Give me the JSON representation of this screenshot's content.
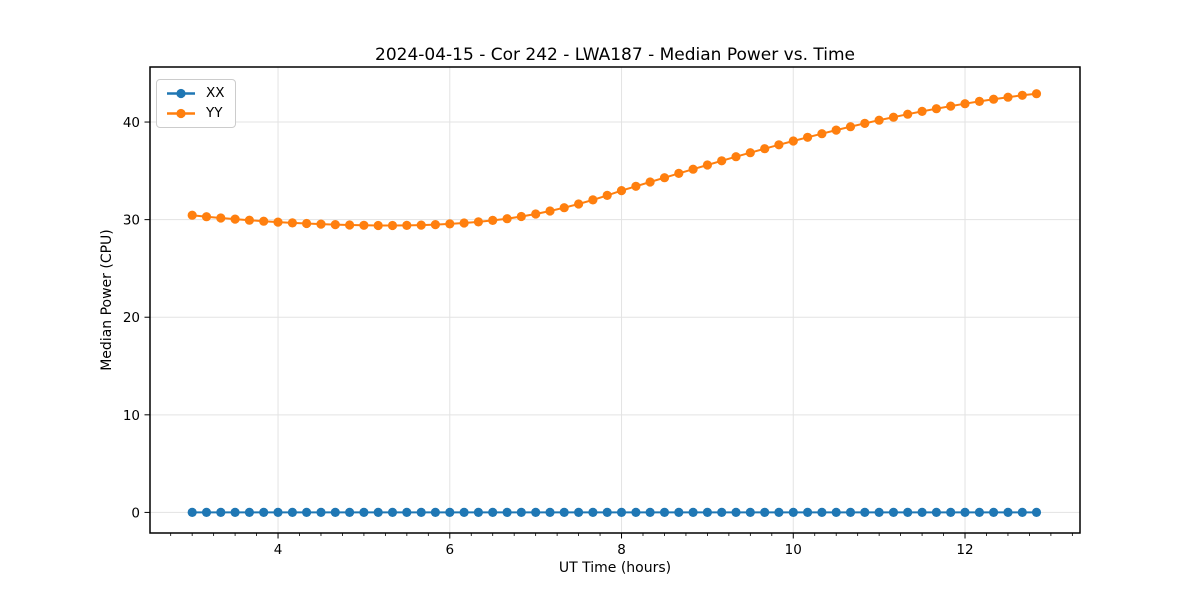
{
  "legend": {
    "position": "upper left",
    "items": [
      {
        "label": "XX",
        "color": "#1f77b4"
      },
      {
        "label": "YY",
        "color": "#ff7f0e"
      }
    ]
  },
  "chart_data": {
    "type": "line",
    "title": "2024-04-15 - Cor 242 - LWA187 - Median Power vs. Time",
    "xlabel": "UT Time (hours)",
    "ylabel": "Median Power (CPU)",
    "x_ticks": [
      4,
      6,
      8,
      10,
      12
    ],
    "y_ticks": [
      0,
      10,
      20,
      30,
      40
    ],
    "x_minor_step": 0.25,
    "xlim": [
      2.509,
      13.339
    ],
    "ylim": [
      -2.11,
      45.64
    ],
    "grid": true,
    "grid_color": "#e3e3e3",
    "legend_position": "upper left",
    "x": [
      3.0,
      3.167,
      3.333,
      3.5,
      3.667,
      3.833,
      4.0,
      4.167,
      4.333,
      4.5,
      4.667,
      4.833,
      5.0,
      5.167,
      5.333,
      5.5,
      5.667,
      5.833,
      6.0,
      6.167,
      6.333,
      6.5,
      6.667,
      6.833,
      7.0,
      7.167,
      7.333,
      7.5,
      7.667,
      7.833,
      8.0,
      8.167,
      8.333,
      8.5,
      8.667,
      8.833,
      9.0,
      9.167,
      9.333,
      9.5,
      9.667,
      9.833,
      10.0,
      10.167,
      10.333,
      10.5,
      10.667,
      10.833,
      11.0,
      11.167,
      11.333,
      11.5,
      11.667,
      11.833,
      12.0,
      12.167,
      12.333,
      12.5,
      12.667,
      12.833
    ],
    "series": [
      {
        "name": "XX",
        "color": "#1f77b4",
        "values": [
          0,
          0,
          0,
          0,
          0,
          0,
          0,
          0,
          0,
          0,
          0,
          0,
          0,
          0,
          0,
          0,
          0,
          0,
          0,
          0,
          0,
          0,
          0,
          0,
          0,
          0,
          0,
          0,
          0,
          0,
          0,
          0,
          0,
          0,
          0,
          0,
          0,
          0,
          0,
          0,
          0,
          0,
          0,
          0,
          0,
          0,
          0,
          0,
          0,
          0,
          0,
          0,
          0,
          0,
          0,
          0,
          0,
          0,
          0,
          0
        ]
      },
      {
        "name": "YY",
        "color": "#ff7f0e",
        "values": [
          30.45,
          30.3,
          30.17,
          30.05,
          29.94,
          29.84,
          29.75,
          29.67,
          29.6,
          29.54,
          29.49,
          29.45,
          29.42,
          29.4,
          29.4,
          29.41,
          29.44,
          29.49,
          29.56,
          29.65,
          29.77,
          29.92,
          30.1,
          30.32,
          30.58,
          30.88,
          31.22,
          31.6,
          32.02,
          32.48,
          32.97,
          33.42,
          33.86,
          34.3,
          34.74,
          35.17,
          35.6,
          36.03,
          36.45,
          36.86,
          37.27,
          37.67,
          38.06,
          38.44,
          38.81,
          39.17,
          39.52,
          39.86,
          40.19,
          40.5,
          40.8,
          41.09,
          41.37,
          41.63,
          41.88,
          42.12,
          42.34,
          42.55,
          42.74,
          42.9
        ]
      }
    ]
  }
}
